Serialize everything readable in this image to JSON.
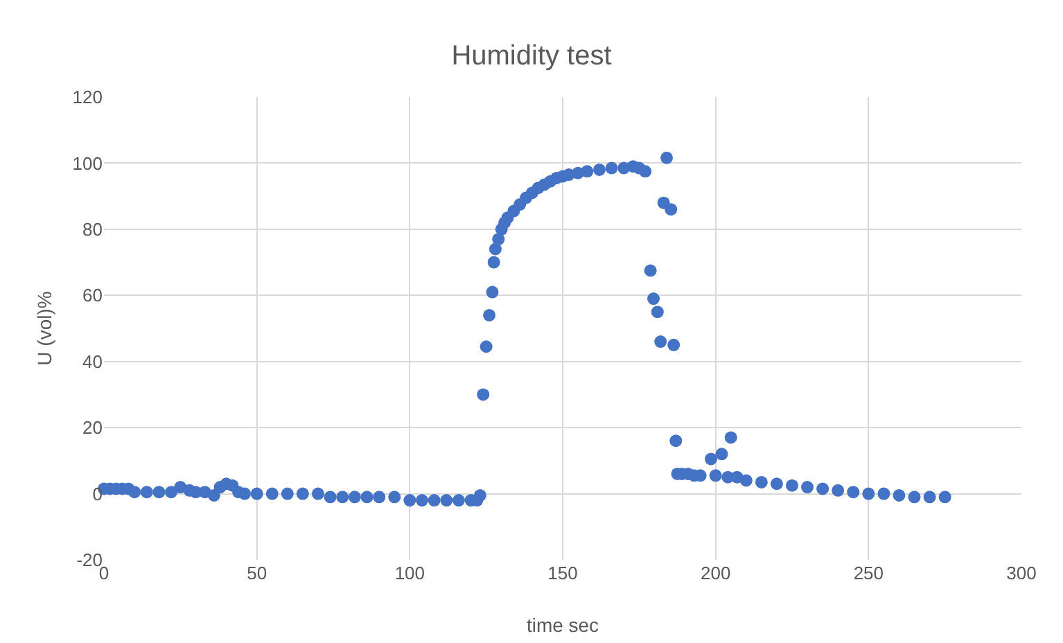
{
  "chart_data": {
    "type": "scatter",
    "title": "Humidity test",
    "xlabel": "time sec",
    "ylabel": "U (vol)%",
    "marker": "circle",
    "grid": true,
    "xlim": [
      0,
      300
    ],
    "xticks": [
      0,
      50,
      100,
      150,
      200,
      250,
      300
    ],
    "ylim": [
      -20,
      120
    ],
    "yticks": [
      -20,
      0,
      20,
      40,
      60,
      80,
      100,
      120
    ],
    "series": [
      {
        "color": "#4472c4",
        "x": [
          0,
          2,
          4,
          6,
          8,
          10,
          14,
          18,
          22,
          25,
          28,
          30,
          33,
          36,
          38,
          40,
          42,
          44,
          46,
          50,
          55,
          60,
          65,
          70,
          74,
          78,
          82,
          86,
          90,
          95,
          100,
          104,
          108,
          112,
          116,
          120,
          122,
          123,
          124,
          125,
          126,
          127,
          127.5,
          128,
          129,
          130,
          131,
          132,
          134,
          136,
          138,
          140,
          142,
          144,
          146,
          148,
          150,
          152,
          155,
          158,
          162,
          166,
          170,
          173,
          175,
          177,
          178.7,
          179.7,
          181,
          182,
          183,
          184,
          185.4,
          186.3,
          187,
          187.5,
          189,
          191,
          193,
          195,
          198.5,
          200,
          202,
          204,
          205,
          207,
          210,
          215,
          220,
          225,
          230,
          235,
          240,
          245,
          250,
          255,
          260,
          265,
          270,
          275
        ],
        "values": [
          1.5,
          1.5,
          1.5,
          1.5,
          1.5,
          0.5,
          0.5,
          0.5,
          0.5,
          2,
          1,
          0.5,
          0.5,
          -0.5,
          2,
          3,
          2.5,
          0.5,
          0,
          0,
          0,
          0,
          0,
          0,
          -1,
          -1,
          -1,
          -1,
          -1,
          -1,
          -2,
          -2,
          -2,
          -2,
          -2,
          -2,
          -2,
          -0.5,
          30,
          44.5,
          54,
          61,
          70,
          74,
          77,
          80,
          82,
          83.5,
          85.5,
          87.5,
          89.5,
          91,
          92.5,
          93.5,
          94.5,
          95.5,
          96,
          96.5,
          97,
          97.5,
          98,
          98.5,
          98.5,
          99,
          98.5,
          97.5,
          67.5,
          59,
          55,
          46,
          88,
          101.6,
          86,
          45,
          16,
          6,
          6,
          6,
          5.5,
          5.5,
          10.5,
          5.5,
          12,
          5,
          17,
          5,
          4,
          3.5,
          3,
          2.5,
          2,
          1.5,
          1,
          0.5,
          0,
          0,
          -0.5,
          -1,
          -1,
          -1
        ]
      }
    ]
  }
}
